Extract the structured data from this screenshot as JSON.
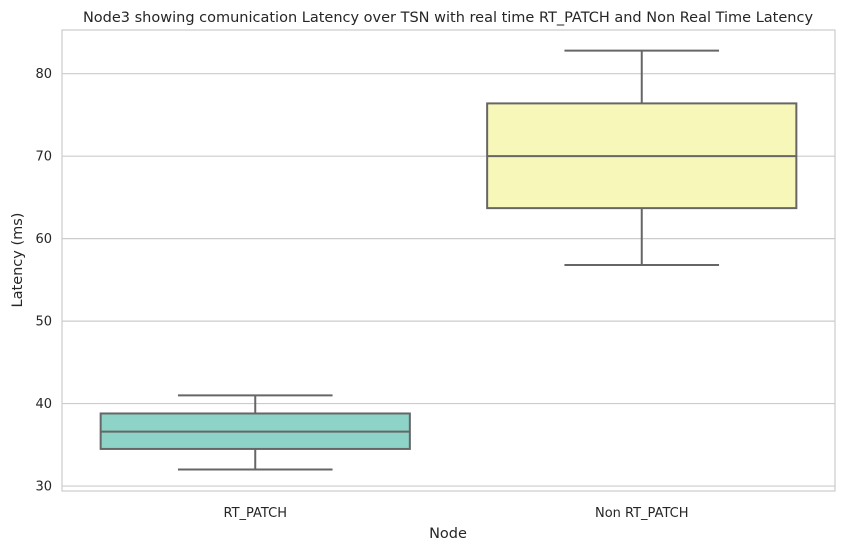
{
  "chart_data": {
    "type": "box",
    "title": "Node3 showing comunication Latency over TSN with real time RT_PATCH and Non Real Time Latency",
    "xlabel": "Node",
    "ylabel": "Latency (ms)",
    "ylim": [
      29.4,
      85.3
    ],
    "yticks": [
      30,
      40,
      50,
      60,
      70,
      80
    ],
    "grid": "horizontal",
    "categories": [
      "RT_PATCH",
      "Non RT_PATCH"
    ],
    "boxes": [
      {
        "category": "RT_PATCH",
        "min": 32.0,
        "q1": 34.5,
        "median": 36.6,
        "q3": 38.8,
        "max": 41.0,
        "color": "#8dd3c7"
      },
      {
        "category": "Non RT_PATCH",
        "min": 56.8,
        "q1": 63.7,
        "median": 70.0,
        "q3": 76.4,
        "max": 82.8,
        "color": "#f7f7ba"
      }
    ]
  }
}
